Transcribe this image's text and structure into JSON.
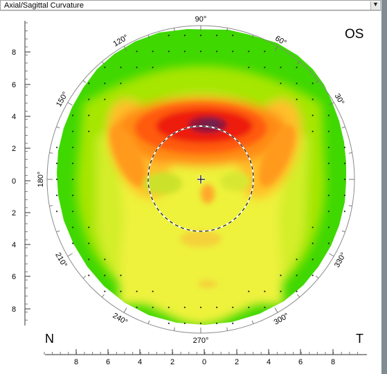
{
  "header": {
    "map_type": "Axial/Sagittal Curvature",
    "dropdown_glyph": "▼"
  },
  "eye_label": "OS",
  "side_labels": {
    "left": "N",
    "right": "T"
  },
  "angles": [
    "90°",
    "60°",
    "30°",
    "330°",
    "300°",
    "270°",
    "240°",
    "210°",
    "180°",
    "150°",
    "120°"
  ],
  "vertical_ticks": [
    "8",
    "6",
    "4",
    "2",
    "0",
    "2",
    "4",
    "6",
    "8"
  ],
  "horizontal_ticks": [
    "8",
    "6",
    "4",
    "2",
    "0",
    "2",
    "4",
    "6",
    "8"
  ],
  "colors": {
    "green": "#38d400",
    "light_green": "#9ee500",
    "yellow_green": "#d0ee2a",
    "yellow": "#f2f23c",
    "orange": "#ffb62c",
    "red_orange": "#ff6a10",
    "red": "#ee1f10",
    "dark_red": "#9d1030",
    "purple": "#7a2250"
  }
}
